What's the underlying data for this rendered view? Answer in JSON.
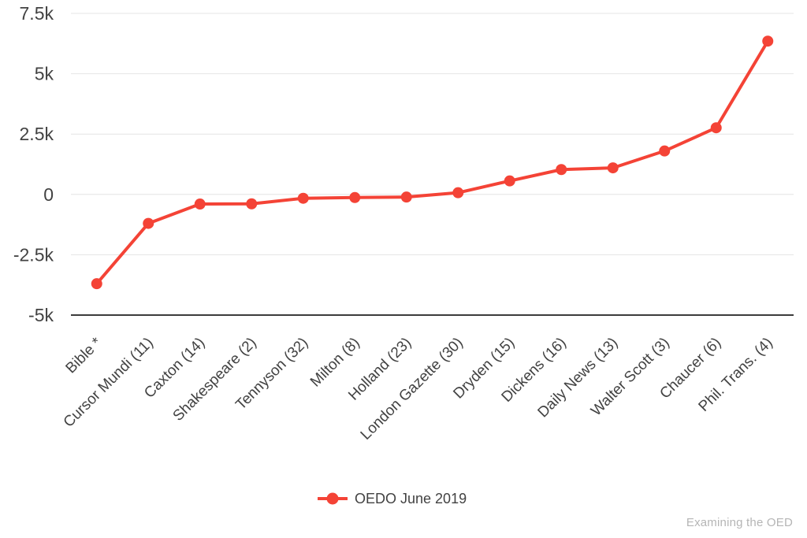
{
  "page": {
    "background": "#ffffff"
  },
  "chart_data": {
    "type": "line",
    "title": "",
    "xlabel": "",
    "ylabel": "",
    "categories": [
      "Bible *",
      "Cursor Mundi (11)",
      "Caxton (14)",
      "Shakespeare (2)",
      "Tennyson (32)",
      "Milton (8)",
      "Holland (23)",
      "London Gazette (30)",
      "Dryden (15)",
      "Dickens (16)",
      "Daily News (13)",
      "Walter Scott (3)",
      "Chaucer (6)",
      "Phil. Trans. (4)"
    ],
    "series": [
      {
        "name": "OEDO June 2019",
        "color": "#f44336",
        "values": [
          -3700,
          -1200,
          -400,
          -390,
          -160,
          -130,
          -110,
          70,
          560,
          1030,
          1100,
          1800,
          2760,
          6350
        ]
      }
    ],
    "ylim": [
      -5000,
      7500
    ],
    "yticks": [
      {
        "value": 7500,
        "label": "7.5k"
      },
      {
        "value": 5000,
        "label": "5k"
      },
      {
        "value": 2500,
        "label": "2.5k"
      },
      {
        "value": 0,
        "label": "0"
      },
      {
        "value": -2500,
        "label": "-2.5k"
      },
      {
        "value": -5000,
        "label": "-5k"
      }
    ],
    "grid": true,
    "legend_position": "bottom",
    "x_label_rotation_deg": 45,
    "marker": "circle",
    "line_width": 4,
    "point_radius": 7,
    "colors": {
      "text": "#424242",
      "grid": "#e4e4e4",
      "axis": "#3b3b3b"
    }
  },
  "legend": {
    "label": "OEDO June 2019"
  },
  "watermark": {
    "text": "Examining the OED",
    "color": "#b5b5b5"
  }
}
